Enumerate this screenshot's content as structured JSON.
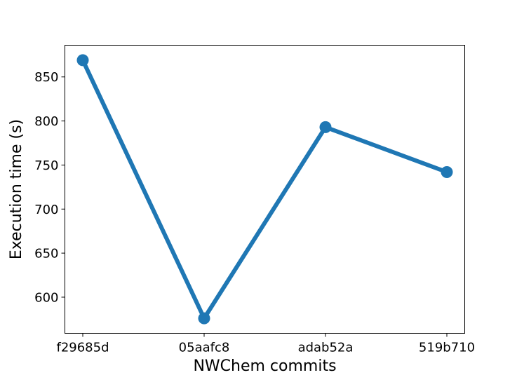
{
  "chart_data": {
    "type": "line",
    "title": "",
    "xlabel": "NWChem commits",
    "ylabel": "Execution time (s)",
    "categories": [
      "f29685d",
      "05aafc8",
      "adab52a",
      "519b710"
    ],
    "series": [
      {
        "values": [
          869,
          576,
          793,
          742
        ]
      }
    ],
    "ylim": [
      559,
      886
    ],
    "yticks": [
      600,
      650,
      700,
      750,
      800,
      850
    ],
    "ytick_labels": [
      "600",
      "650",
      "700",
      "750",
      "800",
      "850"
    ],
    "grid": false,
    "legend": "none",
    "line_color": "#1f77b4",
    "marker": "circle"
  }
}
